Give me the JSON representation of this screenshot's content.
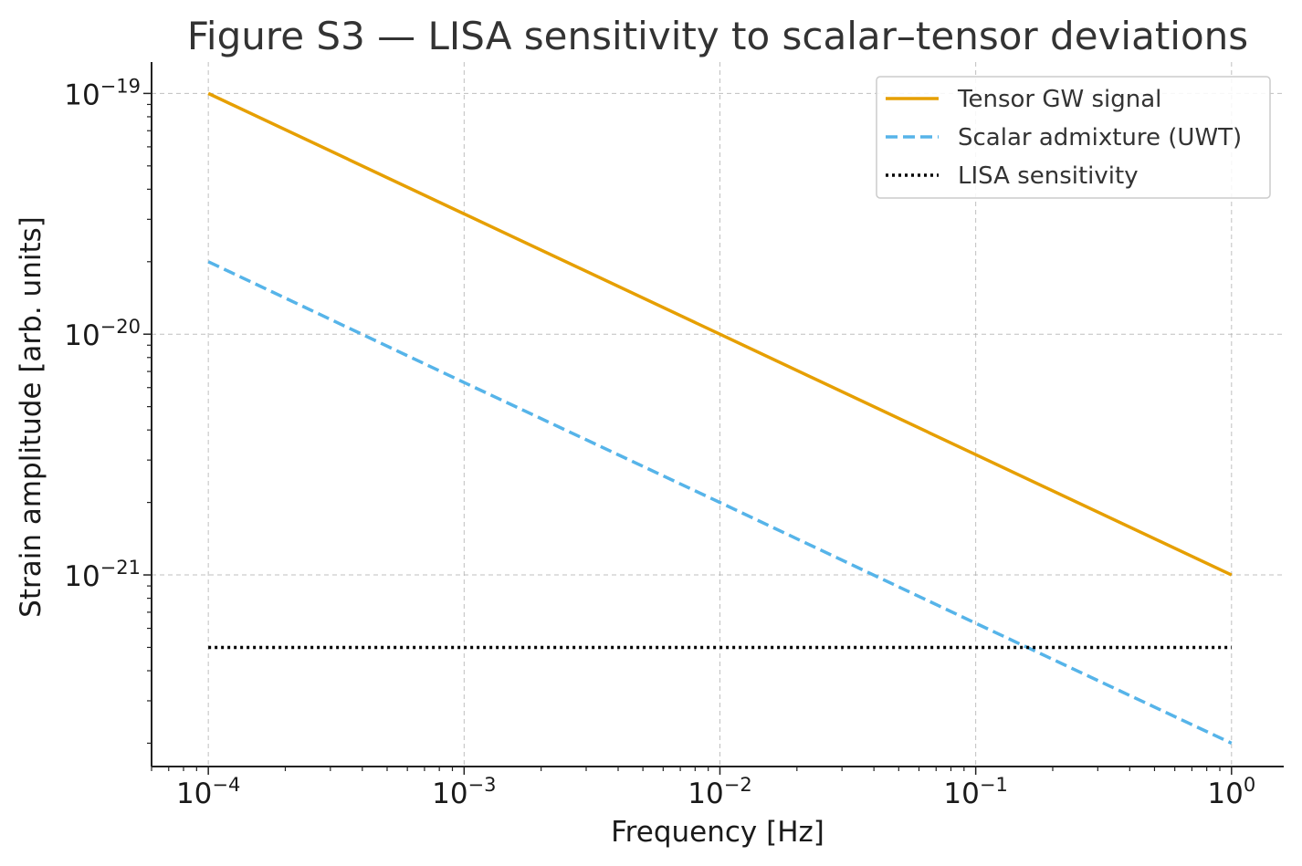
{
  "chart_data": {
    "type": "line",
    "title": "Figure S3 — LISA sensitivity to scalar–tensor deviations",
    "xlabel": "Frequency [Hz]",
    "ylabel": "Strain amplitude [arb. units]",
    "xscale": "log",
    "yscale": "log",
    "xlim": [
      6e-05,
      1.6
    ],
    "ylim": [
      1.6e-22,
      1.35e-19
    ],
    "grid": true,
    "legend_position": "upper right",
    "x_ticks": [
      {
        "value": 0.0001,
        "base": "10",
        "exp": "−4"
      },
      {
        "value": 0.001,
        "base": "10",
        "exp": "−3"
      },
      {
        "value": 0.01,
        "base": "10",
        "exp": "−2"
      },
      {
        "value": 0.1,
        "base": "10",
        "exp": "−1"
      },
      {
        "value": 1,
        "base": "10",
        "exp": "0"
      }
    ],
    "y_ticks": [
      {
        "value": 1e-19,
        "base": "10",
        "exp": "−19"
      },
      {
        "value": 1e-20,
        "base": "10",
        "exp": "−20"
      },
      {
        "value": 1e-21,
        "base": "10",
        "exp": "−21"
      }
    ],
    "series": [
      {
        "name": "Tensor GW signal",
        "color": "#E69F00",
        "style": "solid",
        "x": [
          0.0001,
          0.001,
          0.01,
          0.1,
          1
        ],
        "y": [
          1e-19,
          3.16e-20,
          1e-20,
          3.16e-21,
          1e-21
        ]
      },
      {
        "name": "Scalar admixture (UWT)",
        "color": "#56B4E9",
        "style": "dashed",
        "x": [
          0.0001,
          0.001,
          0.01,
          0.1,
          1
        ],
        "y": [
          2e-20,
          6.3e-21,
          2e-21,
          6.3e-22,
          2e-22
        ]
      },
      {
        "name": "LISA sensitivity",
        "color": "#000000",
        "style": "dotted",
        "x": [
          0.0001,
          1
        ],
        "y": [
          5e-22,
          5e-22
        ]
      }
    ]
  }
}
